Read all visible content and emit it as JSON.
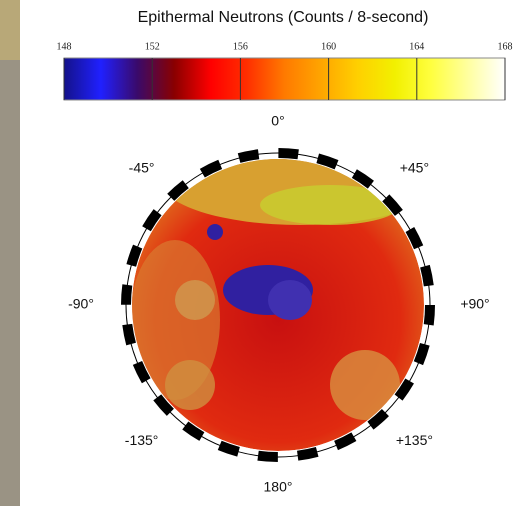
{
  "title": "Epithermal Neutrons (Counts / 8-second)",
  "colorbar": {
    "lim": [
      148,
      168
    ],
    "ticks": [
      148,
      152,
      156,
      160,
      164,
      168
    ],
    "colors": [
      "#14128a",
      "#2020ff",
      "#3a0a6a",
      "#8a0000",
      "#ff0000",
      "#ff3000",
      "#ff7a00",
      "#ffa500",
      "#ffd000",
      "#f2f000",
      "#ffff40",
      "#ffffa0",
      "#ffffff"
    ]
  },
  "angle_labels": [
    {
      "value": 0,
      "label": "0°"
    },
    {
      "value": 45,
      "label": "+45°"
    },
    {
      "value": 90,
      "label": "+90°"
    },
    {
      "value": 135,
      "label": "+135°"
    },
    {
      "value": 180,
      "label": "180°"
    },
    {
      "value": -135,
      "label": "-135°"
    },
    {
      "value": -90,
      "label": "-90°"
    },
    {
      "value": -45,
      "label": "-45°"
    }
  ]
}
